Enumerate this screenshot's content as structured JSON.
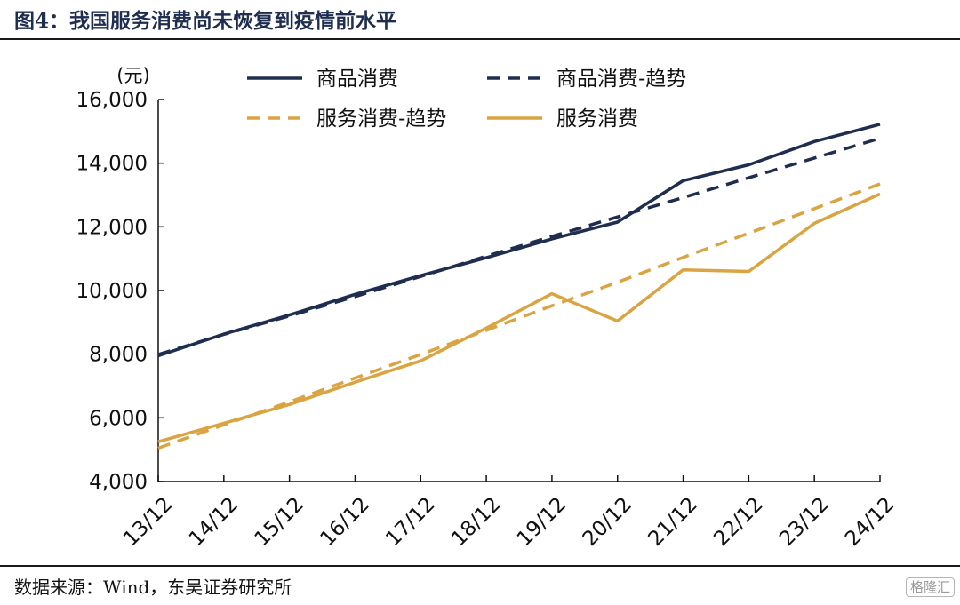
{
  "figure": {
    "title": "图4：我国服务消费尚未恢复到疫情前水平",
    "source": "数据来源：Wind，东吴证券研究所",
    "watermark": "格隆汇"
  },
  "chart_data": {
    "type": "line",
    "title": "",
    "ylabel": "(元)",
    "xlabel": "",
    "categories": [
      "13/12",
      "14/12",
      "15/12",
      "16/12",
      "17/12",
      "18/12",
      "19/12",
      "20/12",
      "21/12",
      "22/12",
      "23/12",
      "24/12"
    ],
    "ylim": [
      4000,
      16000
    ],
    "yticks": [
      4000,
      6000,
      8000,
      10000,
      12000,
      14000,
      16000
    ],
    "ytick_labels": [
      "4,000",
      "6,000",
      "8,000",
      "10,000",
      "12,000",
      "14,000",
      "16,000"
    ],
    "grid": false,
    "legend_position": "top",
    "series": [
      {
        "name": "商品消费",
        "color": "#1f2d4f",
        "dash": "solid",
        "values": [
          7950,
          8630,
          9230,
          9880,
          10470,
          11030,
          11620,
          12150,
          13450,
          13950,
          14680,
          15220
        ]
      },
      {
        "name": "商品消费-趋势",
        "color": "#1f2d4f",
        "dash": "dashed",
        "values": [
          7990,
          8620,
          9200,
          9810,
          10440,
          11080,
          11700,
          12310,
          12920,
          13540,
          14160,
          14780
        ]
      },
      {
        "name": "服务消费-趋势",
        "color": "#d9a441",
        "dash": "dashed",
        "values": [
          5050,
          5780,
          6500,
          7250,
          7990,
          8750,
          9520,
          10260,
          11040,
          11800,
          12570,
          13350
        ]
      },
      {
        "name": "服务消费",
        "color": "#d9a441",
        "dash": "solid",
        "values": [
          5250,
          5830,
          6420,
          7120,
          7790,
          8820,
          9900,
          9040,
          10650,
          10600,
          12110,
          13030
        ]
      }
    ],
    "legend_rows": [
      [
        0,
        1
      ],
      [
        2,
        3
      ]
    ]
  }
}
